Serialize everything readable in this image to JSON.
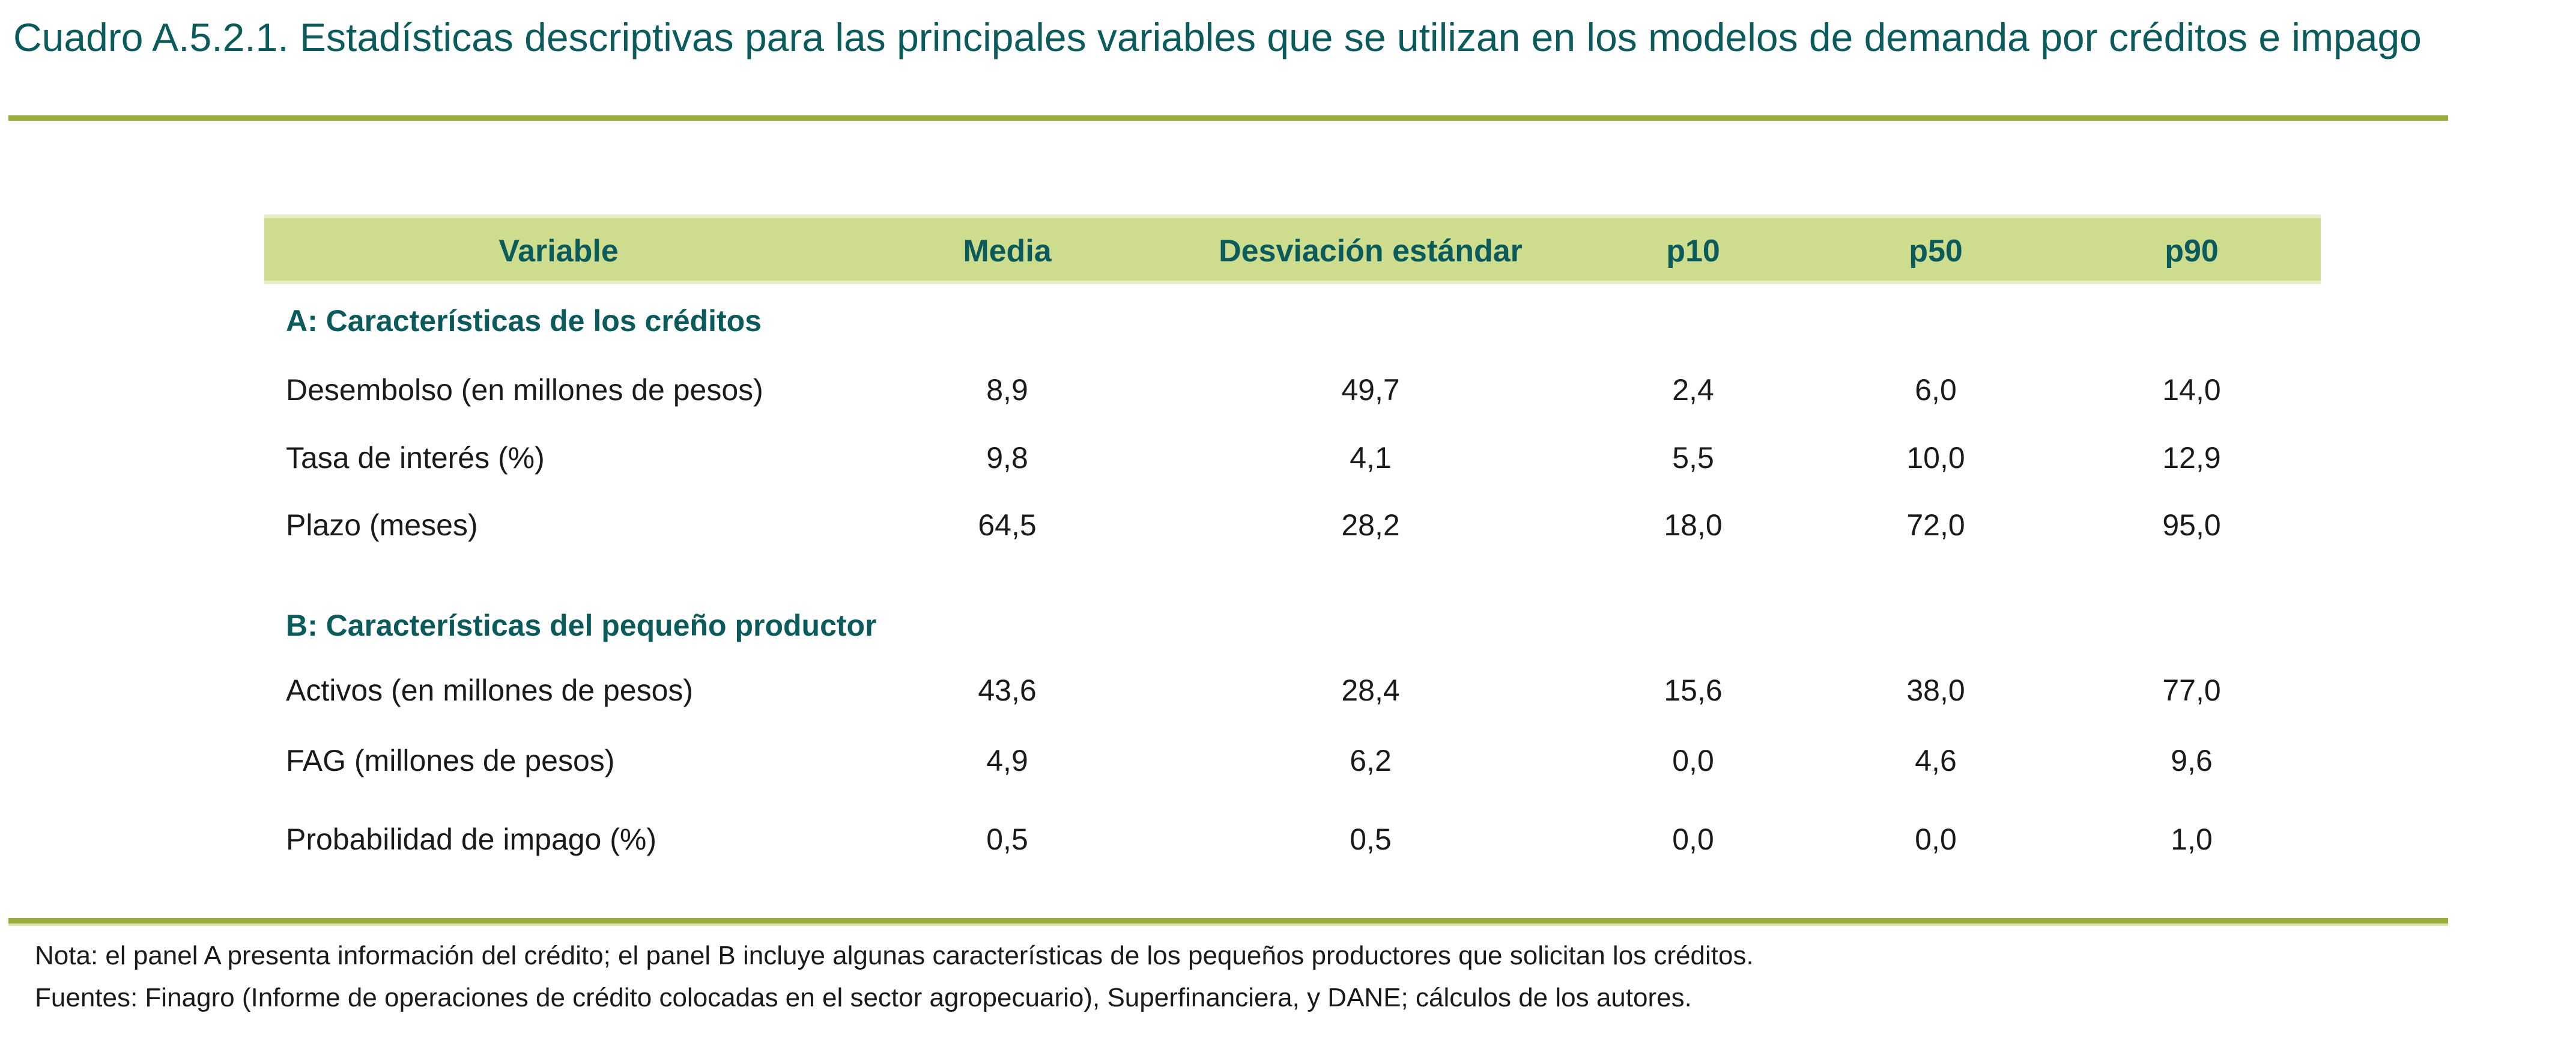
{
  "title": "Cuadro A.5.2.1. Estadísticas descriptivas para las principales variables que se utilizan en los modelos de demanda por créditos e impago",
  "colors": {
    "title": "#0b5b5c",
    "rule": "#9aac3a",
    "header_band": "#cddd8d"
  },
  "table": {
    "headers": [
      "Variable",
      "Media",
      "Desviación estándar",
      "p10",
      "p50",
      "p90"
    ],
    "sections": [
      {
        "title": "A: Características de los créditos",
        "rows": [
          {
            "label": "Desembolso (en millones de pesos)",
            "values": [
              "8,9",
              "49,7",
              "2,4",
              "6,0",
              "14,0"
            ]
          },
          {
            "label": "Tasa de interés (%)",
            "values": [
              "9,8",
              "4,1",
              "5,5",
              "10,0",
              "12,9"
            ]
          },
          {
            "label": "Plazo (meses)",
            "values": [
              "64,5",
              "28,2",
              "18,0",
              "72,0",
              "95,0"
            ]
          }
        ]
      },
      {
        "title": "B: Características del pequeño productor",
        "rows": [
          {
            "label": "Activos (en millones de pesos)",
            "values": [
              "43,6",
              "28,4",
              "15,6",
              "38,0",
              "77,0"
            ]
          },
          {
            "label": "FAG (millones de pesos)",
            "values": [
              "4,9",
              "6,2",
              "0,0",
              "4,6",
              "9,6"
            ]
          },
          {
            "label": "Probabilidad de impago (%)",
            "values": [
              "0,5",
              "0,5",
              "0,0",
              "0,0",
              "1,0"
            ]
          }
        ]
      }
    ]
  },
  "notes": [
    "Nota: el panel A presenta información del crédito; el panel B incluye algunas características de los pequeños productores que solicitan los créditos.",
    "Fuentes: Finagro (Informe de operaciones de crédito colocadas en el sector agropecuario), Superfinanciera, y DANE; cálculos de los autores."
  ]
}
